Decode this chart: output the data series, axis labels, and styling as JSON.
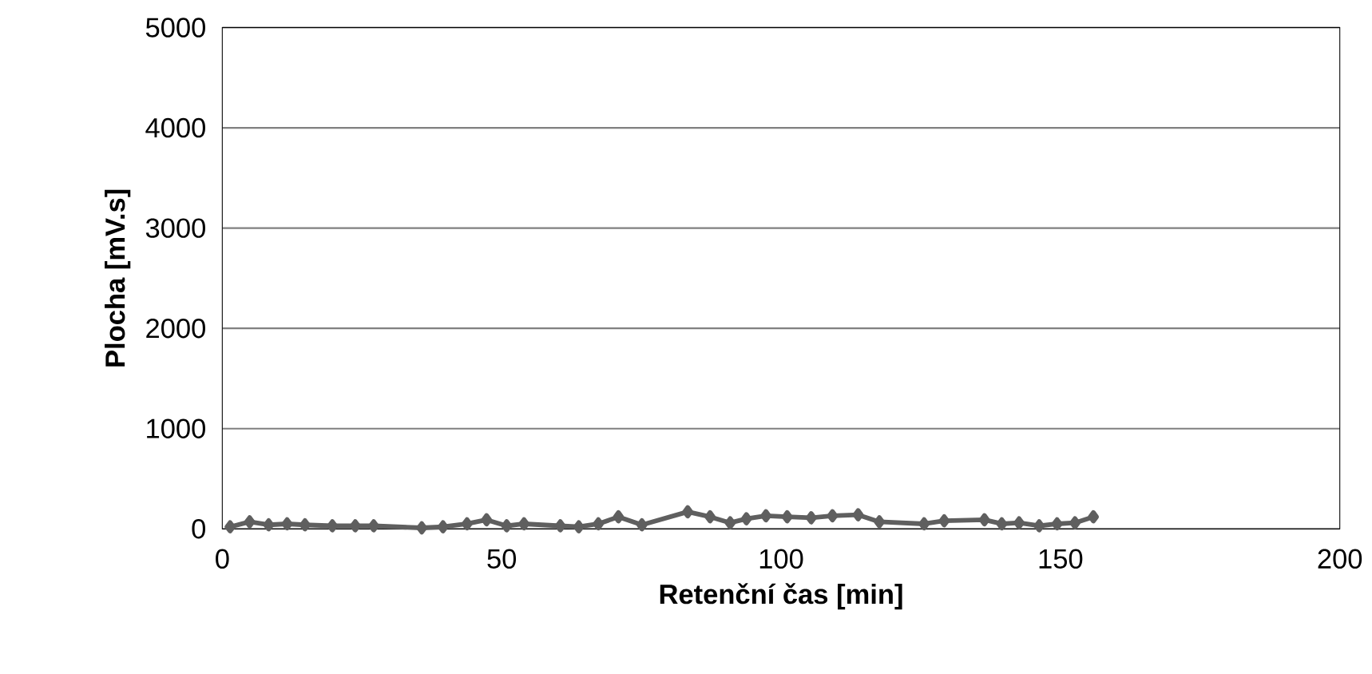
{
  "chart_data": {
    "type": "line",
    "xlabel": "Retenční čas [min]",
    "ylabel": "Plocha [mV.s]",
    "xlim": [
      0,
      200
    ],
    "xticks": [
      0,
      50,
      100,
      150,
      200
    ],
    "ylim": [
      0,
      5000
    ],
    "yticks": [
      0,
      1000,
      2000,
      3000,
      4000,
      5000
    ],
    "grid": "y",
    "marker": "diamond",
    "line_style": "solid",
    "series": [
      {
        "color": "#5f5f5f",
        "x": [
          1.4,
          4.9,
          8.3,
          11.6,
          14.8,
          19.7,
          23.8,
          27.1,
          35.7,
          39.5,
          43.8,
          47.3,
          50.9,
          54.0,
          60.5,
          63.8,
          67.3,
          70.9,
          75.1,
          83.3,
          87.3,
          90.9,
          93.8,
          97.3,
          101.1,
          105.4,
          109.2,
          113.8,
          117.6,
          125.6,
          129.2,
          136.4,
          139.5,
          142.6,
          146.2,
          149.4,
          152.6,
          155.9
        ],
        "values": [
          20,
          70,
          40,
          50,
          40,
          30,
          30,
          30,
          10,
          20,
          50,
          90,
          30,
          50,
          30,
          20,
          50,
          120,
          40,
          170,
          120,
          60,
          100,
          130,
          120,
          110,
          130,
          140,
          70,
          50,
          80,
          90,
          50,
          60,
          30,
          50,
          60,
          120
        ]
      }
    ]
  }
}
